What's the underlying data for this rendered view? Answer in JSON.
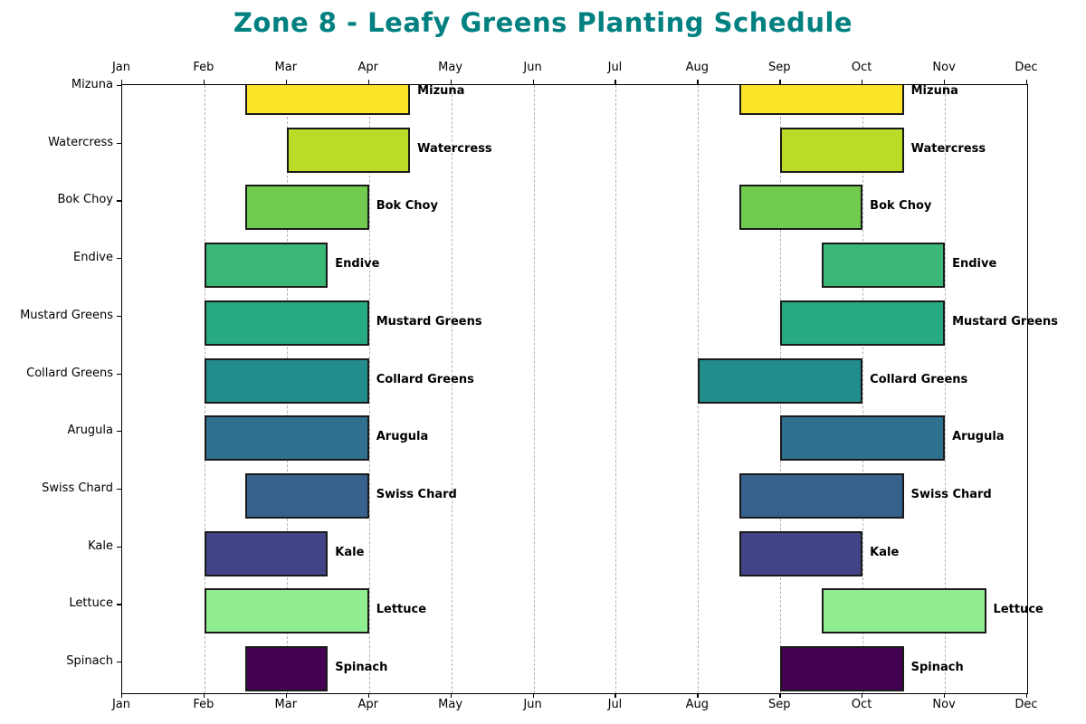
{
  "title": "Zone 8 - Leafy Greens Planting Schedule",
  "title_color": "#008080",
  "chart_data": {
    "type": "bar",
    "subtype": "horizontal-gantt-planting-schedule",
    "title": "Zone 8 - Leafy Greens Planting Schedule",
    "x_tick_labels": [
      "Jan",
      "Feb",
      "Mar",
      "Apr",
      "May",
      "Jun",
      "Jul",
      "Aug",
      "Sep",
      "Oct",
      "Nov",
      "Dec"
    ],
    "x_axis": {
      "unit": "month",
      "range": [
        0,
        11
      ],
      "ticks_on": "top and bottom",
      "label_rows": 2
    },
    "grid": {
      "vertical_dashed_per_month": true,
      "color": "#b3b3b3"
    },
    "legend": "none",
    "bar_outline_color": "#1a1a1a",
    "bars_per_crop": 2,
    "rows": [
      {
        "crop": "Mizuna",
        "color": "#FCE428",
        "windows": [
          {
            "season": "spring",
            "start": "Feb 15",
            "end": "Apr 15",
            "start_month": 1.5,
            "end_month": 3.5,
            "label": "Mizuna"
          },
          {
            "season": "fall",
            "start": "Aug 15",
            "end": "Oct 15",
            "start_month": 7.5,
            "end_month": 9.5,
            "label": "Mizuna"
          }
        ]
      },
      {
        "crop": "Watercress",
        "color": "#BBDC26",
        "windows": [
          {
            "season": "spring",
            "start": "Mar 1",
            "end": "Apr 15",
            "start_month": 2.0,
            "end_month": 3.5,
            "label": "Watercress"
          },
          {
            "season": "fall",
            "start": "Sep 1",
            "end": "Oct 15",
            "start_month": 8.0,
            "end_month": 9.5,
            "label": "Watercress"
          }
        ]
      },
      {
        "crop": "Bok Choy",
        "color": "#70CB4E",
        "windows": [
          {
            "season": "spring",
            "start": "Feb 15",
            "end": "Apr 1",
            "start_month": 1.5,
            "end_month": 3.0,
            "label": "Bok Choy"
          },
          {
            "season": "fall",
            "start": "Aug 15",
            "end": "Oct 1",
            "start_month": 7.5,
            "end_month": 9.0,
            "label": "Bok Choy"
          }
        ]
      },
      {
        "crop": "Endive",
        "color": "#3BB877",
        "windows": [
          {
            "season": "spring",
            "start": "Feb 1",
            "end": "Mar 15",
            "start_month": 1.0,
            "end_month": 2.5,
            "label": "Endive"
          },
          {
            "season": "fall",
            "start": "Sep 15",
            "end": "Nov 1",
            "start_month": 8.5,
            "end_month": 10.0,
            "label": "Endive"
          }
        ]
      },
      {
        "crop": "Mustard Greens",
        "color": "#27A983",
        "windows": [
          {
            "season": "spring",
            "start": "Feb 1",
            "end": "Apr 1",
            "start_month": 1.0,
            "end_month": 3.0,
            "label": "Mustard Greens"
          },
          {
            "season": "fall",
            "start": "Sep 1",
            "end": "Nov 1",
            "start_month": 8.0,
            "end_month": 10.0,
            "label": "Mustard Greens"
          }
        ]
      },
      {
        "crop": "Collard Greens",
        "color": "#238C8D",
        "windows": [
          {
            "season": "spring",
            "start": "Feb 1",
            "end": "Apr 1",
            "start_month": 1.0,
            "end_month": 3.0,
            "label": "Collard Greens"
          },
          {
            "season": "fall",
            "start": "Aug 1",
            "end": "Oct 1",
            "start_month": 7.0,
            "end_month": 9.0,
            "label": "Collard Greens"
          }
        ]
      },
      {
        "crop": "Arugula",
        "color": "#2F708E",
        "windows": [
          {
            "season": "spring",
            "start": "Feb 1",
            "end": "Apr 1",
            "start_month": 1.0,
            "end_month": 3.0,
            "label": "Arugula"
          },
          {
            "season": "fall",
            "start": "Sep 1",
            "end": "Nov 1",
            "start_month": 8.0,
            "end_month": 10.0,
            "label": "Arugula"
          }
        ]
      },
      {
        "crop": "Swiss Chard",
        "color": "#36618D",
        "windows": [
          {
            "season": "spring",
            "start": "Feb 15",
            "end": "Apr 1",
            "start_month": 1.5,
            "end_month": 3.0,
            "label": "Swiss Chard"
          },
          {
            "season": "fall",
            "start": "Aug 15",
            "end": "Oct 15",
            "start_month": 7.5,
            "end_month": 9.5,
            "label": "Swiss Chard"
          }
        ]
      },
      {
        "crop": "Kale",
        "color": "#434387",
        "windows": [
          {
            "season": "spring",
            "start": "Feb 1",
            "end": "Mar 15",
            "start_month": 1.0,
            "end_month": 2.5,
            "label": "Kale"
          },
          {
            "season": "fall",
            "start": "Aug 15",
            "end": "Oct 1",
            "start_month": 7.5,
            "end_month": 9.0,
            "label": "Kale"
          }
        ]
      },
      {
        "crop": "Lettuce",
        "color": "#90EE90",
        "windows": [
          {
            "season": "spring",
            "start": "Feb 1",
            "end": "Apr 1",
            "start_month": 1.0,
            "end_month": 3.0,
            "label": "Lettuce"
          },
          {
            "season": "fall",
            "start": "Sep 15",
            "end": "Nov 15",
            "start_month": 8.5,
            "end_month": 10.5,
            "label": "Lettuce"
          }
        ]
      },
      {
        "crop": "Spinach",
        "color": "#440154",
        "windows": [
          {
            "season": "spring",
            "start": "Feb 15",
            "end": "Mar 15",
            "start_month": 1.5,
            "end_month": 2.5,
            "label": "Spinach"
          },
          {
            "season": "fall",
            "start": "Sep 1",
            "end": "Oct 15",
            "start_month": 8.0,
            "end_month": 9.5,
            "label": "Spinach"
          }
        ]
      }
    ]
  }
}
